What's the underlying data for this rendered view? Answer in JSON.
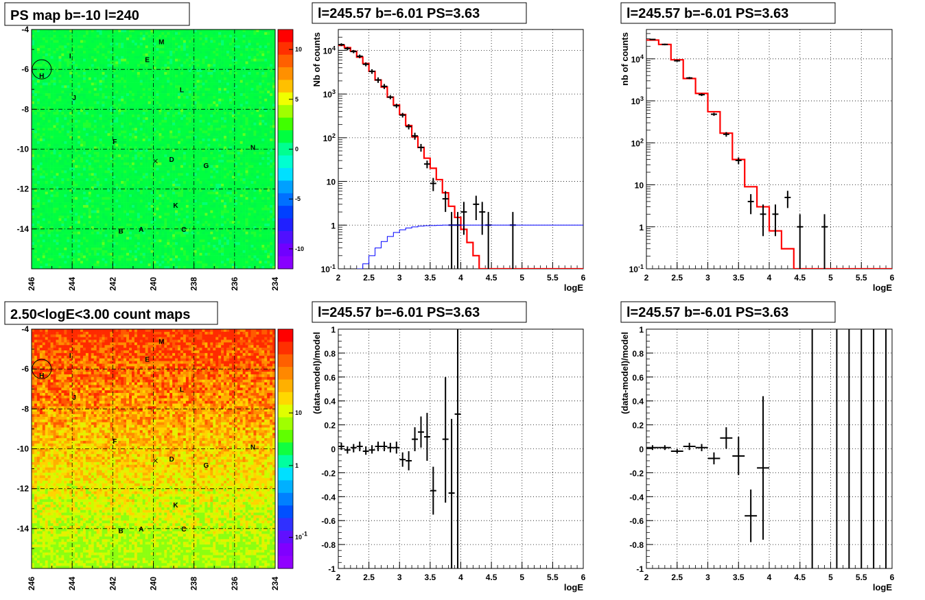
{
  "chart_data": [
    {
      "type": "heatmap",
      "title": "PS map b=-10 l=240",
      "xlabel": "",
      "ylabel": "",
      "xlim": [
        246,
        234
      ],
      "ylim": [
        -16,
        -4
      ],
      "x_ticks": [
        "246",
        "244",
        "242",
        "240",
        "238",
        "236",
        "234"
      ],
      "y_ticks": [
        "-4",
        "-6",
        "-8",
        "-10",
        "-12",
        "-14"
      ],
      "colorbar": {
        "scale": "linear",
        "range": [
          -12,
          12
        ],
        "ticks": [
          "10",
          "5",
          "0",
          "-5",
          "-10"
        ]
      },
      "grid": true,
      "dominant_color": "#00ff40",
      "sources": [
        {
          "label": "M",
          "l": 239.6,
          "b": -4.6
        },
        {
          "label": "I",
          "l": 244.1,
          "b": -5.3
        },
        {
          "label": "E",
          "l": 240.3,
          "b": -5.5
        },
        {
          "label": "H",
          "l": 245.5,
          "b": -6.3
        },
        {
          "label": "L",
          "l": 238.6,
          "b": -7.0
        },
        {
          "label": "J",
          "l": 243.9,
          "b": -7.4
        },
        {
          "label": "F",
          "l": 241.9,
          "b": -9.6
        },
        {
          "label": "N",
          "l": 235.1,
          "b": -9.9
        },
        {
          "label": "D",
          "l": 239.1,
          "b": -10.5
        },
        {
          "label": "G",
          "l": 237.4,
          "b": -10.8
        },
        {
          "label": "K",
          "l": 238.9,
          "b": -12.8
        },
        {
          "label": "B",
          "l": 241.6,
          "b": -14.1
        },
        {
          "label": "A",
          "l": 240.6,
          "b": -14.0
        },
        {
          "label": "C",
          "l": 238.5,
          "b": -14.0
        }
      ],
      "circle": {
        "l": 245.5,
        "b": -6.0
      },
      "cross": {
        "l": 239.9,
        "b": -10.6
      }
    },
    {
      "type": "heatmap",
      "title": "2.50<logE<3.00 count maps",
      "xlabel": "",
      "ylabel": "",
      "xlim": [
        246,
        234
      ],
      "ylim": [
        -16,
        -4
      ],
      "x_ticks": [
        "246",
        "244",
        "242",
        "240",
        "238",
        "236",
        "234"
      ],
      "y_ticks": [
        "-4",
        "-6",
        "-8",
        "-10",
        "-12",
        "-14"
      ],
      "colorbar": {
        "scale": "log",
        "ticks": [
          "10",
          "1",
          "10-1"
        ]
      },
      "grid": true,
      "gradient": "red at top (b=-4) to yellow-green at bottom (b=-16)"
    },
    {
      "type": "line",
      "title": "l=245.57 b=-6.01 PS=3.63",
      "xlabel": "logE",
      "ylabel": "Nb of counts",
      "xlim": [
        2,
        6
      ],
      "ylim": [
        0.1,
        30000
      ],
      "yscale": "log",
      "x_ticks": [
        "2",
        "2.5",
        "3",
        "3.5",
        "4",
        "4.5",
        "5",
        "5.5",
        "6"
      ],
      "y_ticks": [
        "10-1",
        "1",
        "10",
        "102",
        "103",
        "104"
      ],
      "grid": true,
      "series": [
        {
          "role": "model",
          "color": "#ff0000",
          "bin_width": 0.1,
          "x": [
            2.0,
            2.1,
            2.2,
            2.3,
            2.4,
            2.5,
            2.6,
            2.7,
            2.8,
            2.9,
            3.0,
            3.1,
            3.2,
            3.3,
            3.4,
            3.5,
            3.6,
            3.7,
            3.8,
            3.9,
            4.0,
            4.1,
            4.2,
            4.3,
            4.4,
            4.5,
            4.6,
            4.7,
            4.8,
            4.9,
            5.0,
            5.1,
            5.2,
            5.3,
            5.4,
            5.5,
            5.6,
            5.7,
            5.8,
            5.9
          ],
          "values": [
            13000,
            11500,
            9500,
            7000,
            5000,
            3300,
            2100,
            1450,
            850,
            560,
            340,
            190,
            105,
            60,
            34,
            20,
            11,
            5.5,
            2.7,
            1.5,
            0.8,
            0.4,
            0.2,
            0.1,
            0.1,
            0.1,
            0.1,
            0.1,
            0.1,
            0.1,
            0.1,
            0.1,
            0.1,
            0.1,
            0.1,
            0.1,
            0.1,
            0.1,
            0.1,
            0.1
          ]
        },
        {
          "role": "data",
          "color": "#000000",
          "points": [
            {
              "x": 2.05,
              "y": 13500,
              "lo": 12500,
              "hi": 14500
            },
            {
              "x": 2.15,
              "y": 11000,
              "lo": 10000,
              "hi": 12000
            },
            {
              "x": 2.25,
              "y": 9400,
              "lo": 8600,
              "hi": 10200
            },
            {
              "x": 2.35,
              "y": 7300,
              "lo": 6600,
              "hi": 8000
            },
            {
              "x": 2.45,
              "y": 4800,
              "lo": 4300,
              "hi": 5300
            },
            {
              "x": 2.55,
              "y": 3300,
              "lo": 2900,
              "hi": 3700
            },
            {
              "x": 2.65,
              "y": 2100,
              "lo": 1800,
              "hi": 2400
            },
            {
              "x": 2.75,
              "y": 1500,
              "lo": 1300,
              "hi": 1700
            },
            {
              "x": 2.85,
              "y": 850,
              "lo": 760,
              "hi": 940
            },
            {
              "x": 2.95,
              "y": 540,
              "lo": 480,
              "hi": 600
            },
            {
              "x": 3.05,
              "y": 330,
              "lo": 290,
              "hi": 370
            },
            {
              "x": 3.15,
              "y": 180,
              "lo": 155,
              "hi": 205
            },
            {
              "x": 3.25,
              "y": 110,
              "lo": 90,
              "hi": 130
            },
            {
              "x": 3.35,
              "y": 60,
              "lo": 48,
              "hi": 72
            },
            {
              "x": 3.45,
              "y": 25,
              "lo": 20,
              "hi": 30
            },
            {
              "x": 3.55,
              "y": 9,
              "lo": 6,
              "hi": 12
            },
            {
              "x": 3.75,
              "y": 4,
              "lo": 2,
              "hi": 6
            },
            {
              "x": 3.85,
              "y": 1,
              "lo": 0.1,
              "hi": 2
            },
            {
              "x": 3.95,
              "y": 1,
              "lo": 0.1,
              "hi": 2
            },
            {
              "x": 4.05,
              "y": 2,
              "lo": 0.6,
              "hi": 3.4
            },
            {
              "x": 4.25,
              "y": 3,
              "lo": 1.3,
              "hi": 4.7
            },
            {
              "x": 4.35,
              "y": 2,
              "lo": 0.6,
              "hi": 3.4
            },
            {
              "x": 4.45,
              "y": 1,
              "lo": 0.1,
              "hi": 2
            },
            {
              "x": 4.85,
              "y": 1,
              "lo": 0.1,
              "hi": 2
            }
          ]
        },
        {
          "role": "residual-model",
          "color": "#0000ff",
          "bin_width": 0.1,
          "x": [
            2.3,
            2.4,
            2.5,
            2.6,
            2.7,
            2.8,
            2.9,
            3.0,
            3.1,
            3.2,
            3.3,
            3.4,
            3.5,
            3.6,
            3.7,
            3.8,
            3.9,
            4.0,
            4.1,
            4.2,
            4.3,
            4.4,
            4.5,
            4.6,
            4.7,
            4.8,
            4.9,
            5.0,
            5.1,
            5.2,
            5.3,
            5.4,
            5.5,
            5.6,
            5.7,
            5.8,
            5.9
          ],
          "values": [
            0.1,
            0.13,
            0.2,
            0.3,
            0.42,
            0.55,
            0.68,
            0.78,
            0.86,
            0.91,
            0.95,
            0.97,
            0.98,
            0.99,
            1.0,
            1.0,
            1.0,
            1.0,
            1.0,
            1.0,
            1.0,
            1.0,
            1.0,
            1.0,
            1.0,
            1.0,
            1.0,
            1.0,
            1.0,
            1.0,
            1.0,
            1.0,
            1.0,
            1.0,
            1.0,
            1.0,
            1.0
          ]
        }
      ]
    },
    {
      "type": "line",
      "title": "l=245.57 b=-6.01 PS=3.63",
      "xlabel": "logE",
      "ylabel": "nb of counts",
      "xlim": [
        2,
        6
      ],
      "ylim": [
        0.1,
        50000
      ],
      "yscale": "log",
      "x_ticks": [
        "2",
        "2.5",
        "3",
        "3.5",
        "4",
        "4.5",
        "5",
        "5.5",
        "6"
      ],
      "y_ticks": [
        "10-1",
        "1",
        "10",
        "102",
        "103",
        "104"
      ],
      "grid": true,
      "series": [
        {
          "role": "model",
          "color": "#ff0000",
          "bin_width": 0.2,
          "x": [
            2.0,
            2.2,
            2.4,
            2.6,
            2.8,
            3.0,
            3.2,
            3.4,
            3.6,
            3.8,
            4.0,
            4.2,
            4.4,
            4.6,
            4.8,
            5.0,
            5.2,
            5.4,
            5.6,
            5.8
          ],
          "values": [
            28000,
            22000,
            9500,
            3400,
            1500,
            550,
            170,
            40,
            9,
            3,
            0.8,
            0.3,
            0.1,
            0.1,
            0.1,
            0.1,
            0.1,
            0.1,
            0.1,
            0.1
          ]
        },
        {
          "role": "data",
          "color": "#000000",
          "points": [
            {
              "x": 2.1,
              "y": 29000,
              "lo": 28000,
              "hi": 30000
            },
            {
              "x": 2.3,
              "y": 22000,
              "lo": 21000,
              "hi": 23000
            },
            {
              "x": 2.5,
              "y": 9000,
              "lo": 8500,
              "hi": 9500
            },
            {
              "x": 2.7,
              "y": 3500,
              "lo": 3300,
              "hi": 3700
            },
            {
              "x": 2.9,
              "y": 1400,
              "lo": 1300,
              "hi": 1500
            },
            {
              "x": 3.1,
              "y": 480,
              "lo": 440,
              "hi": 520
            },
            {
              "x": 3.3,
              "y": 160,
              "lo": 140,
              "hi": 180
            },
            {
              "x": 3.5,
              "y": 38,
              "lo": 31,
              "hi": 45
            },
            {
              "x": 3.7,
              "y": 4,
              "lo": 2,
              "hi": 6
            },
            {
              "x": 3.9,
              "y": 2,
              "lo": 0.6,
              "hi": 3.4
            },
            {
              "x": 4.1,
              "y": 2,
              "lo": 0.6,
              "hi": 3.4
            },
            {
              "x": 4.3,
              "y": 5,
              "lo": 2.8,
              "hi": 7.2
            },
            {
              "x": 4.5,
              "y": 1,
              "lo": 0.1,
              "hi": 2
            },
            {
              "x": 4.9,
              "y": 1,
              "lo": 0.1,
              "hi": 2
            }
          ]
        }
      ]
    },
    {
      "type": "scatter",
      "title": "l=245.57 b=-6.01 PS=3.63",
      "xlabel": "logE",
      "ylabel": "(data-model)/model",
      "xlim": [
        2,
        6
      ],
      "ylim": [
        -1,
        1
      ],
      "x_ticks": [
        "2",
        "2.5",
        "3",
        "3.5",
        "4",
        "4.5",
        "5",
        "5.5",
        "6"
      ],
      "y_ticks": [
        "1",
        "0.8",
        "0.6",
        "0.4",
        "0.2",
        "0",
        "-0.2",
        "-0.4",
        "-0.6",
        "-0.8",
        "-1"
      ],
      "grid": true,
      "series": [
        {
          "role": "residual",
          "color": "#000000",
          "xerr": 0.05,
          "points": [
            {
              "x": 2.05,
              "y": 0.02,
              "lo": -0.01,
              "hi": 0.05
            },
            {
              "x": 2.15,
              "y": -0.01,
              "lo": -0.04,
              "hi": 0.02
            },
            {
              "x": 2.25,
              "y": 0.01,
              "lo": -0.03,
              "hi": 0.04
            },
            {
              "x": 2.35,
              "y": 0.02,
              "lo": -0.02,
              "hi": 0.06
            },
            {
              "x": 2.45,
              "y": -0.02,
              "lo": -0.05,
              "hi": 0.02
            },
            {
              "x": 2.55,
              "y": -0.01,
              "lo": -0.04,
              "hi": 0.03
            },
            {
              "x": 2.65,
              "y": 0.02,
              "lo": -0.02,
              "hi": 0.06
            },
            {
              "x": 2.75,
              "y": 0.02,
              "lo": -0.02,
              "hi": 0.06
            },
            {
              "x": 2.85,
              "y": 0.01,
              "lo": -0.03,
              "hi": 0.05
            },
            {
              "x": 2.95,
              "y": 0.01,
              "lo": -0.04,
              "hi": 0.06
            },
            {
              "x": 3.05,
              "y": -0.09,
              "lo": -0.15,
              "hi": -0.03
            },
            {
              "x": 3.15,
              "y": -0.1,
              "lo": -0.18,
              "hi": -0.02
            },
            {
              "x": 3.25,
              "y": 0.08,
              "lo": -0.02,
              "hi": 0.18
            },
            {
              "x": 3.35,
              "y": 0.14,
              "lo": 0.01,
              "hi": 0.27
            },
            {
              "x": 3.45,
              "y": 0.1,
              "lo": -0.1,
              "hi": 0.3
            },
            {
              "x": 3.55,
              "y": -0.35,
              "lo": -0.55,
              "hi": -0.15
            },
            {
              "x": 3.75,
              "y": 0.08,
              "lo": -0.45,
              "hi": 0.6
            },
            {
              "x": 3.85,
              "y": -0.37,
              "lo": -1,
              "hi": 0.25
            },
            {
              "x": 3.95,
              "y": 0.29,
              "lo": -1,
              "hi": 1
            }
          ]
        }
      ]
    },
    {
      "type": "scatter",
      "title": "l=245.57 b=-6.01 PS=3.63",
      "xlabel": "logE",
      "ylabel": "(data-model)/model",
      "xlim": [
        2,
        6
      ],
      "ylim": [
        -1,
        1
      ],
      "x_ticks": [
        "2",
        "2.5",
        "3",
        "3.5",
        "4",
        "4.5",
        "5",
        "5.5",
        "6"
      ],
      "y_ticks": [
        "1",
        "0.8",
        "0.6",
        "0.4",
        "0.2",
        "0",
        "-0.2",
        "-0.4",
        "-0.6",
        "-0.8",
        "-1"
      ],
      "grid": true,
      "series": [
        {
          "role": "residual",
          "color": "#000000",
          "xerr": 0.1,
          "points": [
            {
              "x": 2.1,
              "y": 0.01,
              "lo": -0.01,
              "hi": 0.03
            },
            {
              "x": 2.3,
              "y": 0.01,
              "lo": -0.01,
              "hi": 0.03
            },
            {
              "x": 2.5,
              "y": -0.02,
              "lo": -0.04,
              "hi": 0.0
            },
            {
              "x": 2.7,
              "y": 0.02,
              "lo": -0.01,
              "hi": 0.05
            },
            {
              "x": 2.9,
              "y": 0.01,
              "lo": -0.02,
              "hi": 0.04
            },
            {
              "x": 3.1,
              "y": -0.08,
              "lo": -0.13,
              "hi": -0.03
            },
            {
              "x": 3.3,
              "y": 0.09,
              "lo": 0.0,
              "hi": 0.18
            },
            {
              "x": 3.5,
              "y": -0.06,
              "lo": -0.22,
              "hi": 0.1
            },
            {
              "x": 3.7,
              "y": -0.56,
              "lo": -0.78,
              "hi": -0.34
            },
            {
              "x": 3.9,
              "y": -0.16,
              "lo": -0.76,
              "hi": 0.44
            }
          ]
        },
        {
          "role": "full-range-bars",
          "color": "#000000",
          "x": [
            4.7,
            5.1,
            5.3,
            5.5,
            5.7,
            5.9
          ]
        }
      ]
    }
  ]
}
